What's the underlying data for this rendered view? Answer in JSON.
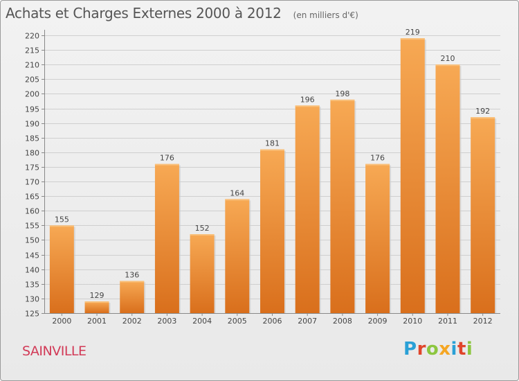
{
  "header": {
    "title": "Achats et Charges Externes 2000 à 2012",
    "subtitle": "(en milliers d'€)"
  },
  "footer": {
    "commune": "SAINVILLE",
    "logo_text": "Proxiti",
    "logo_colors": [
      "#2aa0d6",
      "#e0452b",
      "#8cc63f",
      "#f5a623",
      "#2aa0d6",
      "#e0452b",
      "#8cc63f"
    ]
  },
  "chart_data": {
    "type": "bar",
    "title": "Achats et Charges Externes 2000 à 2012",
    "subtitle": "(en milliers d'€)",
    "xlabel": "",
    "ylabel": "",
    "categories": [
      "2000",
      "2001",
      "2002",
      "2003",
      "2004",
      "2005",
      "2006",
      "2007",
      "2008",
      "2009",
      "2010",
      "2011",
      "2012"
    ],
    "values": [
      155,
      129,
      136,
      176,
      152,
      164,
      181,
      196,
      198,
      176,
      219,
      210,
      192
    ],
    "ylim": [
      125,
      220
    ],
    "ytick_step": 5,
    "grid": true,
    "bar_color": "#f0913a",
    "bar_color_light": "#f7a954",
    "bar_color_dark": "#d96f1c"
  }
}
